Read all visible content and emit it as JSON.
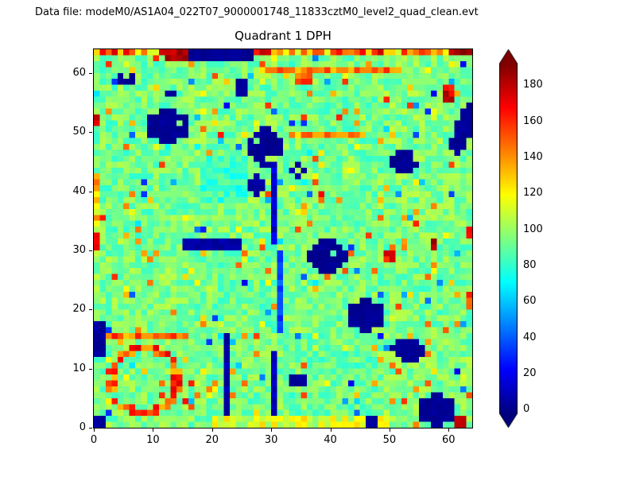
{
  "header": {
    "datafile_label": "Data file: modeM0/AS1A04_022T07_9000001748_11833cztM0_level2_quad_clean.evt"
  },
  "chart_data": {
    "type": "heatmap",
    "title": "Quadrant 1 DPH",
    "xlabel": "",
    "ylabel": "",
    "x_range": [
      0,
      64
    ],
    "y_range": [
      0,
      64
    ],
    "x_ticks": [
      0,
      10,
      20,
      30,
      40,
      50,
      60
    ],
    "y_ticks": [
      0,
      10,
      20,
      30,
      40,
      50,
      60
    ],
    "colormap": "jet",
    "vmin": -2,
    "vmax": 192,
    "colorbar": {
      "ticks": [
        0,
        20,
        40,
        60,
        80,
        100,
        120,
        140,
        160,
        180
      ],
      "extend": "both",
      "under_color": "#00007f",
      "over_color": "#7f0000"
    },
    "grid": {
      "size": 64,
      "seed": 42,
      "base": 93,
      "noise": 13,
      "hot_speckle_prob": 0.05,
      "cold_speckle_prob": 0.025,
      "hot_speckle_range": [
        20,
        65
      ],
      "cold_speckle_range": [
        20,
        70
      ],
      "module_offsets": [
        [
          1,
          0,
          -2,
          2
        ],
        [
          2,
          -1,
          1,
          0
        ],
        [
          -1,
          2,
          0,
          1
        ],
        [
          0,
          1,
          -1,
          2
        ]
      ]
    },
    "features": [
      {
        "shape": "rect",
        "x": 18,
        "y": 38,
        "w": 8,
        "h": 8,
        "value": 82,
        "jitter": 26
      },
      {
        "shape": "rect",
        "x": 20,
        "y": 0,
        "w": 30,
        "h": 2,
        "value": 112,
        "jitter": 34
      },
      {
        "shape": "rect",
        "x": 0,
        "y": 33,
        "w": 1,
        "h": 10,
        "value": 120,
        "jitter": 55
      },
      {
        "shape": "rect",
        "x": 0,
        "y": 63,
        "w": 64,
        "h": 1,
        "value": 145,
        "jitter": 70
      },
      {
        "shape": "rect",
        "x": 12,
        "y": 62,
        "w": 4,
        "h": 2,
        "value": 182,
        "jitter": 18
      },
      {
        "shape": "rect",
        "x": 28,
        "y": 60,
        "w": 24,
        "h": 1,
        "value": 142,
        "jitter": 38
      },
      {
        "shape": "rect",
        "x": 60,
        "y": 63,
        "w": 4,
        "h": 1,
        "value": 186,
        "jitter": 14
      },
      {
        "shape": "rect",
        "x": 0,
        "y": 51,
        "w": 1,
        "h": 2,
        "value": 178,
        "jitter": 12
      },
      {
        "shape": "rect",
        "x": 0,
        "y": 30,
        "w": 1,
        "h": 3,
        "value": 172,
        "jitter": 16
      },
      {
        "shape": "rect",
        "x": 57,
        "y": 30,
        "w": 1,
        "h": 2,
        "value": 184,
        "jitter": 10
      },
      {
        "shape": "rect",
        "x": 49,
        "y": 28,
        "w": 2,
        "h": 2,
        "value": 168,
        "jitter": 22
      },
      {
        "shape": "ring",
        "cx": 8,
        "cy": 7.5,
        "r": 5.5,
        "thick": 0.75,
        "value": 152,
        "jitter": 45
      },
      {
        "shape": "rect",
        "x": 2,
        "y": 15,
        "w": 14,
        "h": 1,
        "value": 146,
        "jitter": 40
      },
      {
        "shape": "rect",
        "x": 61,
        "y": 0,
        "w": 2,
        "h": 2,
        "value": 178,
        "jitter": 15
      },
      {
        "shape": "rect",
        "x": 63,
        "y": 20,
        "w": 1,
        "h": 3,
        "value": 160,
        "jitter": 25
      },
      {
        "shape": "rect",
        "x": 63,
        "y": 32,
        "w": 1,
        "h": 2,
        "value": 168,
        "jitter": 20
      },
      {
        "shape": "rect",
        "x": 59,
        "y": 55,
        "w": 2,
        "h": 3,
        "value": 172,
        "jitter": 28
      },
      {
        "shape": "rect",
        "x": 34,
        "y": 58,
        "w": 3,
        "h": 2,
        "value": 152,
        "jitter": 30
      },
      {
        "shape": "rect",
        "x": 33,
        "y": 49,
        "w": 13,
        "h": 1,
        "value": 140,
        "jitter": 35
      },
      {
        "shape": "rect",
        "x": 16,
        "y": 62,
        "w": 11,
        "h": 2,
        "value": 2,
        "jitter": 5
      },
      {
        "shape": "ellipse",
        "cx": 5,
        "cy": 58.5,
        "rx": 1.6,
        "ry": 1.2,
        "value": 2,
        "jitter": 5
      },
      {
        "shape": "rect",
        "x": 12,
        "y": 56,
        "w": 2,
        "h": 1,
        "value": 3,
        "jitter": 4
      },
      {
        "shape": "ellipse",
        "cx": 12,
        "cy": 50.5,
        "rx": 3.6,
        "ry": 2.6,
        "value": 2,
        "jitter": 6
      },
      {
        "shape": "ellipse",
        "cx": 28.5,
        "cy": 47,
        "rx": 2.6,
        "ry": 3.4,
        "value": 2,
        "jitter": 6
      },
      {
        "shape": "line",
        "x1": 30,
        "y1": 31,
        "x2": 30,
        "y2": 44,
        "t": 1,
        "value": 14,
        "jitter": 18
      },
      {
        "shape": "ellipse",
        "cx": 52,
        "cy": 44.5,
        "rx": 2.6,
        "ry": 1.6,
        "value": 2,
        "jitter": 6
      },
      {
        "shape": "line",
        "x1": 61,
        "y1": 47,
        "x2": 63,
        "y2": 52.5,
        "t": 1.5,
        "value": 3,
        "jitter": 6
      },
      {
        "shape": "ellipse",
        "cx": 39,
        "cy": 28.5,
        "rx": 3.1,
        "ry": 2.6,
        "value": 2,
        "jitter": 5
      },
      {
        "shape": "ellipse",
        "cx": 45.5,
        "cy": 18.5,
        "rx": 3.1,
        "ry": 2.6,
        "value": 2,
        "jitter": 5
      },
      {
        "shape": "ellipse",
        "cx": 52.5,
        "cy": 12.5,
        "rx": 3.1,
        "ry": 2.1,
        "value": 2,
        "jitter": 5
      },
      {
        "shape": "ellipse",
        "cx": 57.5,
        "cy": 2.5,
        "rx": 3.1,
        "ry": 2.6,
        "value": 2,
        "jitter": 5
      },
      {
        "shape": "rect",
        "x": 0,
        "y": 12,
        "w": 2,
        "h": 6,
        "value": 3,
        "jitter": 6
      },
      {
        "shape": "rect",
        "x": 0,
        "y": 0,
        "w": 2,
        "h": 2,
        "value": 3,
        "jitter": 6
      },
      {
        "shape": "line",
        "x1": 21.5,
        "y1": 2,
        "x2": 21.5,
        "y2": 15,
        "t": 1,
        "value": 6,
        "jitter": 10
      },
      {
        "shape": "line",
        "x1": 30,
        "y1": 2,
        "x2": 30,
        "y2": 12,
        "t": 1,
        "value": 10,
        "jitter": 12
      },
      {
        "shape": "line",
        "x1": 30.5,
        "y1": 16,
        "x2": 30.5,
        "y2": 29,
        "t": 1,
        "value": 34,
        "jitter": 20
      },
      {
        "shape": "rect",
        "x": 33,
        "y": 7,
        "w": 3,
        "h": 2,
        "value": 3,
        "jitter": 5
      },
      {
        "shape": "rect",
        "x": 15,
        "y": 30,
        "w": 10,
        "h": 2,
        "value": 4,
        "jitter": 8
      },
      {
        "shape": "ellipse",
        "cx": 24.5,
        "cy": 57,
        "rx": 1.2,
        "ry": 1.2,
        "value": 3,
        "jitter": 5
      },
      {
        "shape": "ellipse",
        "cx": 27,
        "cy": 40.5,
        "rx": 1.1,
        "ry": 2.1,
        "value": 5,
        "jitter": 8
      },
      {
        "shape": "ellipse",
        "cx": 34,
        "cy": 43,
        "rx": 1.6,
        "ry": 1.1,
        "value": 6,
        "jitter": 8
      },
      {
        "shape": "rect",
        "x": 46,
        "y": 0,
        "w": 2,
        "h": 2,
        "value": 3,
        "jitter": 5
      }
    ]
  }
}
